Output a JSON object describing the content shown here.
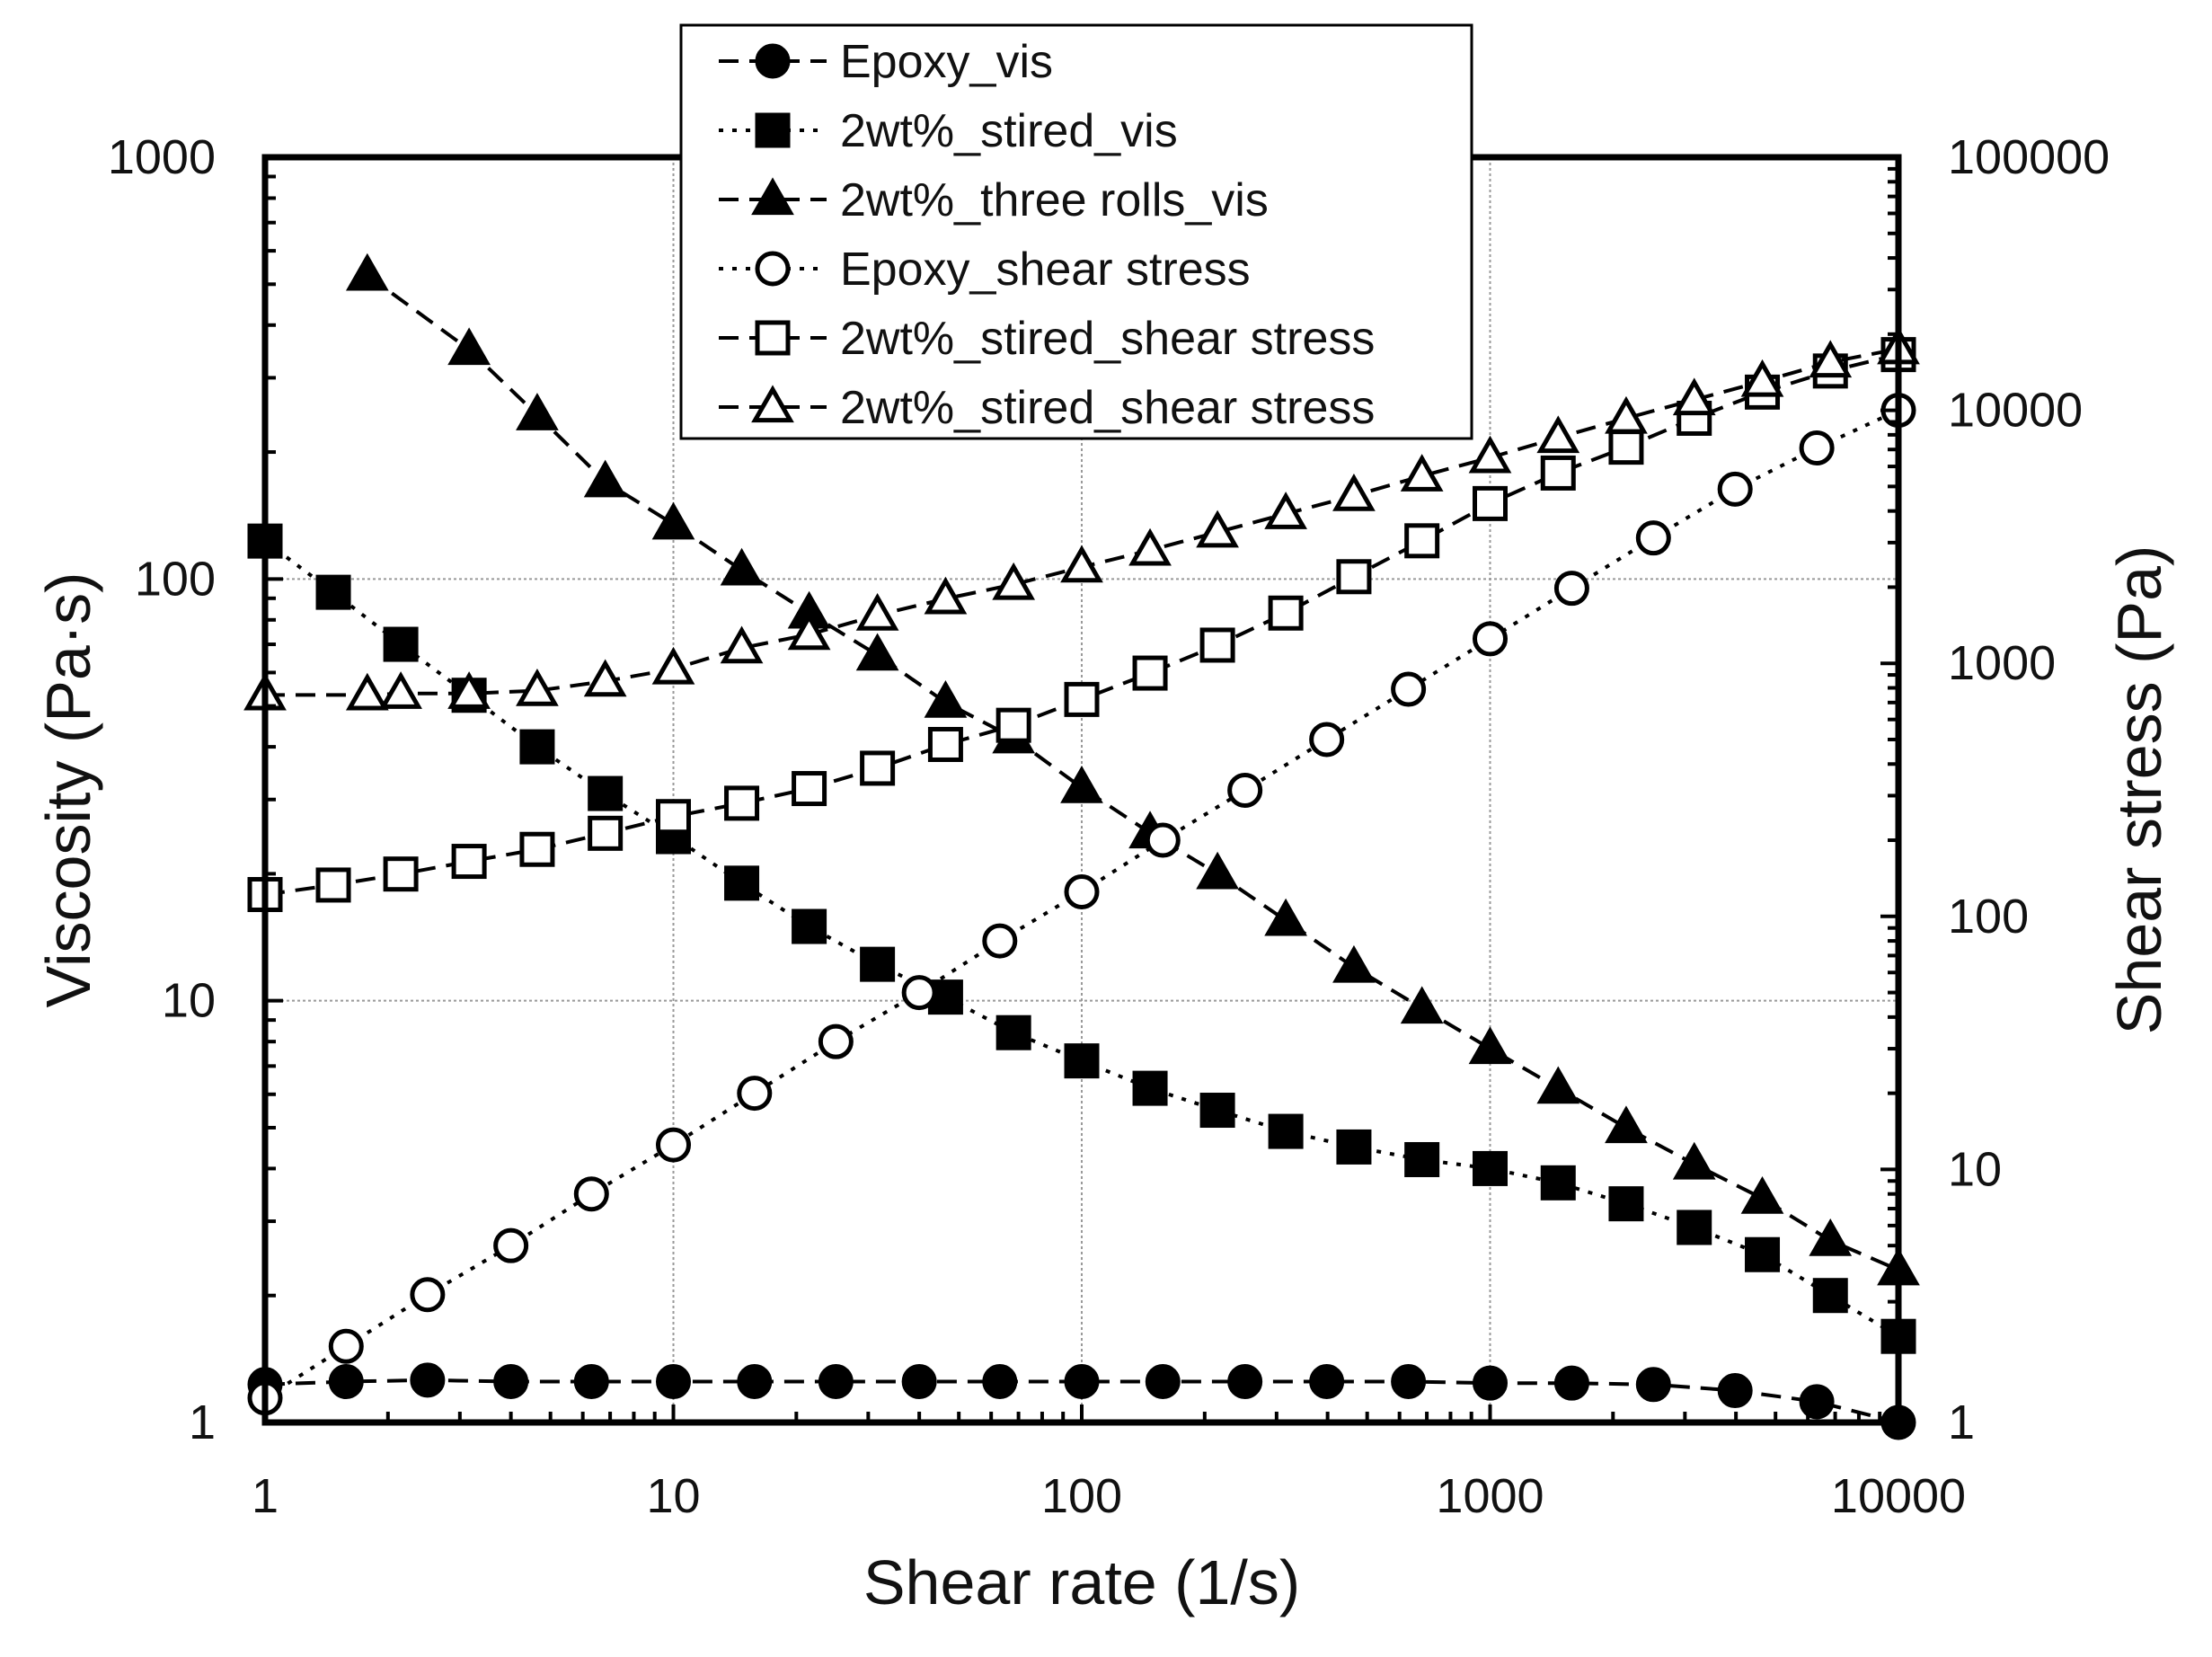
{
  "chart_data": {
    "type": "line",
    "title": "",
    "xlabel": "Shear rate (1/s)",
    "ylabel": "Viscosity (Pa·s)",
    "y2label": "Shear stress (Pa)",
    "x_scale": "log",
    "y_scale": "log",
    "y2_scale": "log",
    "xlim": [
      1,
      10000
    ],
    "ylim": [
      1,
      1000
    ],
    "y2lim": [
      1,
      100000
    ],
    "x_ticks": [
      "1",
      "10",
      "100",
      "1000",
      "10000"
    ],
    "y_ticks": [
      "1",
      "10",
      "100",
      "1000"
    ],
    "y2_ticks": [
      "1",
      "10",
      "100",
      "1000",
      "10000",
      "100000"
    ],
    "grid": true,
    "legend_position": "top-center",
    "series": [
      {
        "name": "Epoxy_vis",
        "axis": "left",
        "marker": "circle-filled",
        "linestyle": "dashed",
        "color": "#000000",
        "x": [
          1,
          1.58,
          2.5,
          4,
          6.3,
          10,
          15.8,
          25,
          40,
          63,
          100,
          158,
          251,
          398,
          631,
          1000,
          1585,
          2512,
          3981,
          6310,
          10000
        ],
        "y": [
          1.23,
          1.25,
          1.26,
          1.25,
          1.25,
          1.25,
          1.25,
          1.25,
          1.25,
          1.25,
          1.25,
          1.25,
          1.25,
          1.25,
          1.25,
          1.24,
          1.24,
          1.23,
          1.19,
          1.12,
          1.0
        ]
      },
      {
        "name": "2wt%_stired_vis",
        "axis": "left",
        "marker": "square-filled",
        "linestyle": "dotted",
        "color": "#000000",
        "x": [
          1,
          1.47,
          2.15,
          3.16,
          4.64,
          6.81,
          10,
          14.7,
          21.5,
          31.6,
          46.4,
          68.1,
          100,
          147,
          215,
          316,
          464,
          681,
          1000,
          1468,
          2154,
          3162,
          4642,
          6813,
          10000
        ],
        "y": [
          123,
          93,
          70,
          53,
          40,
          31,
          24.5,
          19,
          15,
          12.2,
          10.2,
          8.4,
          7.2,
          6.2,
          5.5,
          4.9,
          4.5,
          4.2,
          4.0,
          3.7,
          3.3,
          2.9,
          2.5,
          2.0,
          1.6
        ]
      },
      {
        "name": "2wt%_three rolls_vis",
        "axis": "left",
        "marker": "triangle-filled",
        "linestyle": "dashed",
        "color": "#000000",
        "x": [
          1.78,
          3.16,
          4.64,
          6.81,
          10,
          14.7,
          21.5,
          31.6,
          46.4,
          68.1,
          100,
          147,
          215,
          316,
          464,
          681,
          1000,
          1468,
          2154,
          3162,
          4642,
          6813,
          10000
        ],
        "y": [
          525,
          350,
          245,
          170,
          135,
          105,
          83,
          66,
          51,
          42,
          32,
          25,
          20,
          15.5,
          12,
          9.6,
          7.7,
          6.2,
          5.0,
          4.1,
          3.4,
          2.7,
          2.3
        ]
      },
      {
        "name": "Epoxy_shear stress",
        "axis": "right",
        "marker": "circle-open",
        "linestyle": "dotted",
        "color": "#000000",
        "x": [
          1,
          1.58,
          2.5,
          4,
          6.3,
          10,
          15.8,
          25,
          40,
          63,
          100,
          158,
          251,
          398,
          631,
          1000,
          1585,
          2512,
          3981,
          6310,
          10000
        ],
        "y": [
          1.25,
          2.0,
          3.2,
          5.0,
          8.0,
          12.5,
          20,
          32,
          50,
          80,
          125,
          200,
          315,
          500,
          790,
          1250,
          1980,
          3130,
          4880,
          7100,
          10000
        ]
      },
      {
        "name": "2wt%_stired_shear stress",
        "axis": "right",
        "marker": "square-open",
        "linestyle": "dashed",
        "color": "#000000",
        "x": [
          1,
          1.47,
          2.15,
          3.16,
          4.64,
          6.81,
          10,
          14.7,
          21.5,
          31.6,
          46.4,
          68.1,
          100,
          147,
          215,
          316,
          464,
          681,
          1000,
          1468,
          2154,
          3162,
          4642,
          6813,
          10000
        ],
        "y": [
          122,
          133,
          147,
          165,
          184,
          213,
          248,
          280,
          320,
          385,
          478,
          569,
          720,
          915,
          1180,
          1580,
          2200,
          3050,
          4280,
          5650,
          7150,
          9300,
          11800,
          14300,
          16600
        ]
      },
      {
        "name": "2wt%_stired_shear stress",
        "axis": "right",
        "marker": "triangle-open",
        "linestyle": "dashed",
        "color": "#000000",
        "x": [
          1,
          1.78,
          2.15,
          3.16,
          4.64,
          6.81,
          10,
          14.7,
          21.5,
          31.6,
          46.4,
          68.1,
          100,
          147,
          215,
          316,
          464,
          681,
          1000,
          1468,
          2154,
          3162,
          4642,
          6813,
          10000
        ],
        "y": [
          750,
          750,
          760,
          760,
          780,
          850,
          950,
          1150,
          1300,
          1550,
          1800,
          2050,
          2400,
          2800,
          3300,
          3900,
          4600,
          5500,
          6500,
          7800,
          9300,
          11000,
          13000,
          15500,
          17500
        ]
      }
    ]
  }
}
